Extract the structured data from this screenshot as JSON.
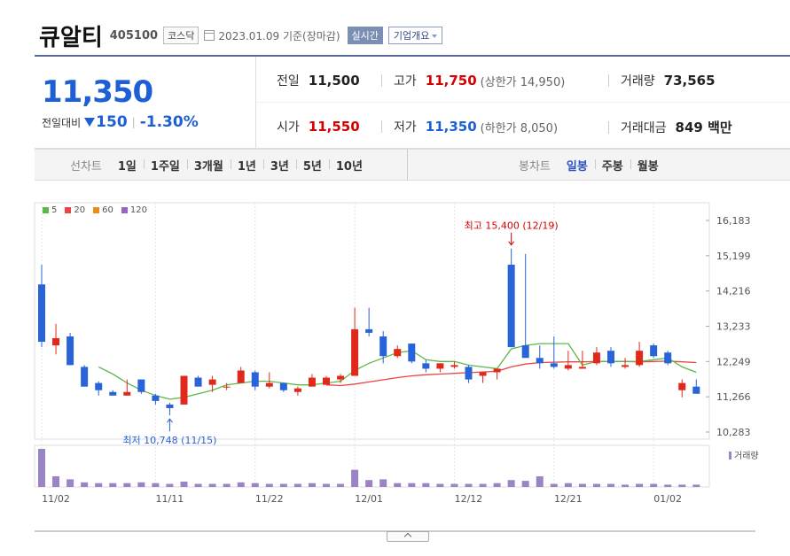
{
  "header": {
    "name": "큐알티",
    "code": "405100",
    "market": "코스닥",
    "date": "2023.01.09 기준(장마감)",
    "realtime_label": "실시간",
    "corp_label": "기업개요"
  },
  "quote": {
    "price": "11,350",
    "change_label": "전일대비",
    "change": "150",
    "change_pct": "-1.30%",
    "prev_label": "전일",
    "prev": "11,500",
    "high_label": "고가",
    "high": "11,750",
    "upper_limit": "(상한가 14,950)",
    "volume_label": "거래량",
    "volume": "73,565",
    "open_label": "시가",
    "open": "11,550",
    "low_label": "저가",
    "low": "11,350",
    "lower_limit": "(하한가 8,050)",
    "amount_label": "거래대금",
    "amount": "849 백만"
  },
  "toolbar": {
    "line_label": "선차트",
    "line_periods": [
      "1일",
      "1주일",
      "3개월",
      "1년",
      "3년",
      "5년",
      "10년"
    ],
    "candle_label": "봉차트",
    "candle_periods": [
      "일봉",
      "주봉",
      "월봉"
    ],
    "active_candle": 0
  },
  "colors": {
    "up": "#e0291b",
    "down": "#2963d9",
    "ma5": "#5cb84a",
    "ma20": "#e84545",
    "ma60": "#ee8a1c",
    "ma120": "#9466c0",
    "volume": "#9a84c6"
  },
  "chart_data": {
    "type": "candlestick",
    "legend": [
      "5",
      "20",
      "60",
      "120"
    ],
    "volume_label": "거래량",
    "y_ticks": [
      "16,183",
      "15,199",
      "14,216",
      "13,233",
      "12,249",
      "11,266",
      "10,283"
    ],
    "ylim": [
      10283,
      16183
    ],
    "x_tick_labels": [
      {
        "label": "11/02",
        "index": 0
      },
      {
        "label": "11/11",
        "index": 8
      },
      {
        "label": "11/22",
        "index": 15
      },
      {
        "label": "12/01",
        "index": 22
      },
      {
        "label": "12/12",
        "index": 29
      },
      {
        "label": "12/21",
        "index": 36
      },
      {
        "label": "01/02",
        "index": 43
      }
    ],
    "max_annotation": {
      "label": "최고 15,400 (12/19)",
      "index": 33,
      "value": 15400
    },
    "min_annotation": {
      "label": "최저 10,748 (11/15)",
      "index": 9,
      "value": 10748
    },
    "candles": [
      {
        "o": 14400,
        "h": 14950,
        "l": 12650,
        "c": 12800
      },
      {
        "o": 12700,
        "h": 13300,
        "l": 12450,
        "c": 12900
      },
      {
        "o": 12950,
        "h": 13050,
        "l": 12150,
        "c": 12150
      },
      {
        "o": 12100,
        "h": 12150,
        "l": 11550,
        "c": 11550
      },
      {
        "o": 11650,
        "h": 11700,
        "l": 11300,
        "c": 11450
      },
      {
        "o": 11400,
        "h": 11450,
        "l": 11300,
        "c": 11300
      },
      {
        "o": 11300,
        "h": 11750,
        "l": 11300,
        "c": 11400
      },
      {
        "o": 11750,
        "h": 11750,
        "l": 11350,
        "c": 11400
      },
      {
        "o": 11300,
        "h": 11350,
        "l": 11050,
        "c": 11150
      },
      {
        "o": 11050,
        "h": 11100,
        "l": 10748,
        "c": 10950
      },
      {
        "o": 11050,
        "h": 11850,
        "l": 11050,
        "c": 11850
      },
      {
        "o": 11800,
        "h": 11850,
        "l": 11550,
        "c": 11550
      },
      {
        "o": 11600,
        "h": 11850,
        "l": 11400,
        "c": 11750
      },
      {
        "o": 11550,
        "h": 11650,
        "l": 11450,
        "c": 11550
      },
      {
        "o": 11650,
        "h": 12100,
        "l": 11650,
        "c": 12000
      },
      {
        "o": 11950,
        "h": 12000,
        "l": 11450,
        "c": 11550
      },
      {
        "o": 11550,
        "h": 11950,
        "l": 11500,
        "c": 11650
      },
      {
        "o": 11650,
        "h": 11650,
        "l": 11400,
        "c": 11450
      },
      {
        "o": 11400,
        "h": 11550,
        "l": 11300,
        "c": 11500
      },
      {
        "o": 11550,
        "h": 11900,
        "l": 11550,
        "c": 11800
      },
      {
        "o": 11600,
        "h": 11850,
        "l": 11600,
        "c": 11800
      },
      {
        "o": 11750,
        "h": 11900,
        "l": 11650,
        "c": 11850
      },
      {
        "o": 11850,
        "h": 13750,
        "l": 11850,
        "c": 13150
      },
      {
        "o": 13150,
        "h": 13750,
        "l": 12950,
        "c": 13050
      },
      {
        "o": 12950,
        "h": 13100,
        "l": 12200,
        "c": 12400
      },
      {
        "o": 12400,
        "h": 12700,
        "l": 12350,
        "c": 12600
      },
      {
        "o": 12750,
        "h": 12750,
        "l": 12200,
        "c": 12250
      },
      {
        "o": 12200,
        "h": 12300,
        "l": 11950,
        "c": 12050
      },
      {
        "o": 12050,
        "h": 12200,
        "l": 11950,
        "c": 12200
      },
      {
        "o": 12100,
        "h": 12250,
        "l": 12050,
        "c": 12150
      },
      {
        "o": 12100,
        "h": 12150,
        "l": 11650,
        "c": 11750
      },
      {
        "o": 11850,
        "h": 11950,
        "l": 11650,
        "c": 11950
      },
      {
        "o": 11950,
        "h": 12050,
        "l": 11750,
        "c": 12050
      },
      {
        "o": 14950,
        "h": 15400,
        "l": 12650,
        "c": 12650
      },
      {
        "o": 12700,
        "h": 15250,
        "l": 12400,
        "c": 12350
      },
      {
        "o": 12350,
        "h": 12700,
        "l": 12050,
        "c": 12200
      },
      {
        "o": 12200,
        "h": 12950,
        "l": 12050,
        "c": 12100
      },
      {
        "o": 12050,
        "h": 12550,
        "l": 12000,
        "c": 12150
      },
      {
        "o": 12050,
        "h": 12550,
        "l": 12050,
        "c": 12100
      },
      {
        "o": 12200,
        "h": 12650,
        "l": 12150,
        "c": 12500
      },
      {
        "o": 12550,
        "h": 12650,
        "l": 12100,
        "c": 12200
      },
      {
        "o": 12100,
        "h": 12350,
        "l": 12050,
        "c": 12150
      },
      {
        "o": 12150,
        "h": 12800,
        "l": 12100,
        "c": 12550
      },
      {
        "o": 12700,
        "h": 12750,
        "l": 12350,
        "c": 12400
      },
      {
        "o": 12500,
        "h": 12550,
        "l": 12150,
        "c": 12200
      },
      {
        "o": 11450,
        "h": 11750,
        "l": 11250,
        "c": 11650
      },
      {
        "o": 11550,
        "h": 11750,
        "l": 11350,
        "c": 11350
      }
    ],
    "ma5": [
      null,
      null,
      null,
      null,
      12100,
      11900,
      11650,
      11450,
      11300,
      11200,
      11250,
      11350,
      11450,
      11600,
      11650,
      11700,
      11700,
      11650,
      11600,
      11600,
      11650,
      11700,
      12000,
      12200,
      12350,
      12500,
      12550,
      12300,
      12250,
      12250,
      12150,
      12100,
      12050,
      12600,
      12700,
      12750,
      12750,
      12750,
      12150,
      12250,
      12250,
      12250,
      12250,
      12300,
      12350,
      12100,
      11950
    ],
    "ma20": [
      null,
      null,
      null,
      null,
      null,
      null,
      null,
      null,
      null,
      null,
      null,
      null,
      null,
      null,
      null,
      null,
      null,
      null,
      null,
      null,
      11600,
      11580,
      11620,
      11680,
      11740,
      11800,
      11850,
      11880,
      11900,
      11920,
      11940,
      11960,
      11980,
      12100,
      12180,
      12220,
      12230,
      12240,
      12240,
      12250,
      12250,
      12250,
      12240,
      12250,
      12260,
      12240,
      12220
    ],
    "volume": [
      100,
      28,
      20,
      12,
      10,
      10,
      10,
      12,
      10,
      8,
      14,
      8,
      8,
      8,
      12,
      10,
      8,
      8,
      8,
      10,
      8,
      8,
      45,
      18,
      20,
      10,
      10,
      10,
      8,
      8,
      8,
      8,
      10,
      18,
      16,
      28,
      8,
      10,
      8,
      8,
      8,
      6,
      8,
      8,
      6,
      6,
      6
    ]
  }
}
